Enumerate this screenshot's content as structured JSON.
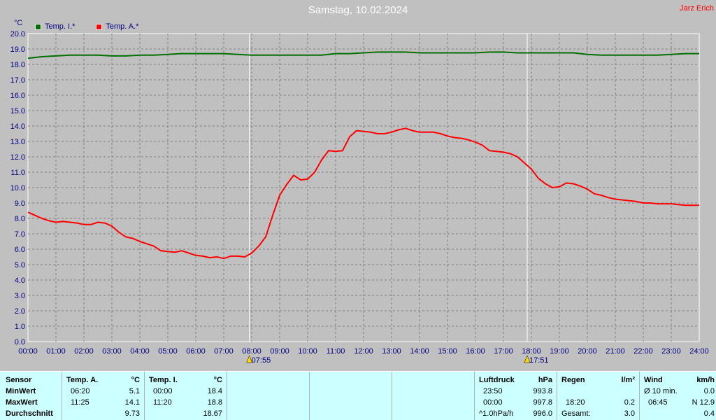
{
  "title": "Samstag, 10.02.2024",
  "author": "Jarz Erich",
  "colors": {
    "inside": "#007000",
    "outside": "#ff0000",
    "plot_bg": "#c0c0c0",
    "grid": "#808080",
    "table_bg": "#ccffff"
  },
  "chart_data": {
    "type": "line",
    "ylabel": "°C",
    "ylim": [
      0.0,
      20.0
    ],
    "y_ticks": [
      "0.0",
      "1.0",
      "2.0",
      "3.0",
      "4.0",
      "5.0",
      "6.0",
      "7.0",
      "8.0",
      "9.0",
      "10.0",
      "11.0",
      "12.0",
      "13.0",
      "14.0",
      "15.0",
      "16.0",
      "17.0",
      "18.0",
      "19.0",
      "20.0"
    ],
    "x_ticks": [
      "00:00",
      "01:00",
      "02:00",
      "03:00",
      "04:00",
      "05:00",
      "06:00",
      "07:00",
      "08:00",
      "09:00",
      "10:00",
      "11:00",
      "12:00",
      "13:00",
      "14:00",
      "15:00",
      "16:00",
      "17:00",
      "18:00",
      "19:00",
      "20:00",
      "21:00",
      "22:00",
      "23:00",
      "24:00"
    ],
    "grid": true,
    "legend": "top-left",
    "sunrise": {
      "label": "07:55",
      "hour": 7.9167
    },
    "sunset": {
      "label": "17:51",
      "hour": 17.85
    },
    "series": [
      {
        "name": "Temp. I.*",
        "color": "#007000",
        "x": [
          0,
          0.5,
          1,
          1.5,
          2,
          2.5,
          3,
          3.5,
          4,
          4.5,
          5,
          5.5,
          6,
          6.5,
          7,
          7.5,
          8,
          8.5,
          9,
          9.5,
          10,
          10.5,
          11,
          11.5,
          12,
          12.5,
          13,
          13.5,
          14,
          14.5,
          15,
          15.5,
          16,
          16.5,
          17,
          17.5,
          18,
          18.5,
          19,
          19.5,
          20,
          20.5,
          21,
          21.5,
          22,
          22.5,
          23,
          23.5,
          24
        ],
        "values": [
          18.4,
          18.5,
          18.55,
          18.6,
          18.6,
          18.6,
          18.55,
          18.55,
          18.6,
          18.6,
          18.65,
          18.7,
          18.7,
          18.7,
          18.7,
          18.65,
          18.6,
          18.6,
          18.6,
          18.6,
          18.6,
          18.6,
          18.7,
          18.7,
          18.75,
          18.8,
          18.8,
          18.8,
          18.75,
          18.75,
          18.75,
          18.75,
          18.75,
          18.8,
          18.8,
          18.75,
          18.75,
          18.75,
          18.75,
          18.75,
          18.65,
          18.6,
          18.6,
          18.6,
          18.6,
          18.6,
          18.65,
          18.7,
          18.7
        ]
      },
      {
        "name": "Temp. A.*",
        "color": "#ff0000",
        "x": [
          0,
          0.25,
          0.5,
          0.75,
          1,
          1.25,
          1.5,
          1.75,
          2,
          2.25,
          2.5,
          2.75,
          3,
          3.25,
          3.5,
          3.75,
          4,
          4.25,
          4.5,
          4.75,
          5,
          5.25,
          5.5,
          5.75,
          6,
          6.25,
          6.5,
          6.75,
          7,
          7.25,
          7.5,
          7.75,
          8,
          8.25,
          8.5,
          8.75,
          9,
          9.25,
          9.5,
          9.75,
          10,
          10.25,
          10.5,
          10.75,
          11,
          11.25,
          11.5,
          11.75,
          12,
          12.25,
          12.5,
          12.75,
          13,
          13.25,
          13.5,
          13.75,
          14,
          14.25,
          14.5,
          14.75,
          15,
          15.25,
          15.5,
          15.75,
          16,
          16.25,
          16.5,
          16.75,
          17,
          17.25,
          17.5,
          17.75,
          18,
          18.25,
          18.5,
          18.75,
          19,
          19.25,
          19.5,
          19.75,
          20,
          20.25,
          20.5,
          20.75,
          21,
          21.25,
          21.5,
          21.75,
          22,
          22.25,
          22.5,
          22.75,
          23,
          23.25,
          23.5,
          23.75,
          24
        ],
        "values": [
          8.4,
          8.2,
          8.0,
          7.85,
          7.75,
          7.8,
          7.75,
          7.7,
          7.6,
          7.6,
          7.75,
          7.7,
          7.5,
          7.1,
          6.8,
          6.7,
          6.5,
          6.35,
          6.2,
          5.9,
          5.85,
          5.8,
          5.9,
          5.75,
          5.6,
          5.55,
          5.45,
          5.5,
          5.4,
          5.55,
          5.55,
          5.5,
          5.75,
          6.2,
          6.8,
          8.2,
          9.5,
          10.2,
          10.8,
          10.5,
          10.55,
          11.0,
          11.8,
          12.4,
          12.35,
          12.4,
          13.3,
          13.7,
          13.65,
          13.6,
          13.5,
          13.5,
          13.6,
          13.75,
          13.85,
          13.7,
          13.6,
          13.6,
          13.6,
          13.5,
          13.35,
          13.25,
          13.2,
          13.1,
          12.95,
          12.75,
          12.4,
          12.35,
          12.3,
          12.2,
          12.0,
          11.6,
          11.2,
          10.6,
          10.25,
          10.0,
          10.05,
          10.3,
          10.25,
          10.1,
          9.9,
          9.6,
          9.5,
          9.35,
          9.25,
          9.2,
          9.15,
          9.1,
          9.0,
          9.0,
          8.95,
          8.95,
          8.95,
          8.9,
          8.85,
          8.85,
          8.85
        ]
      }
    ]
  },
  "table": {
    "sensor": {
      "header": "Sensor",
      "rows": [
        "MinWert",
        "MaxWert",
        "Durchschnitt"
      ]
    },
    "temp_a": {
      "header": "Temp. A.",
      "unit": "°C",
      "min_time": "06:20",
      "min_val": "5.1",
      "max_time": "11:25",
      "max_val": "14.1",
      "avg": "9.73"
    },
    "temp_i": {
      "header": "Temp. I.",
      "unit": "°C",
      "min_time": "00:00",
      "min_val": "18.4",
      "max_time": "11:20",
      "max_val": "18.8",
      "avg": "18.67"
    },
    "pressure": {
      "header": "Luftdruck",
      "unit": "hPa",
      "min_time": "23:50",
      "min_val": "993.8",
      "max_time": "00:00",
      "max_val": "997.8",
      "trend": "^1.0hPa/h",
      "avg": "996.0"
    },
    "rain": {
      "header": "Regen",
      "unit": "l/m²",
      "max_time": "18:20",
      "max_val": "0.2",
      "total_label": "Gesamt:",
      "total": "3.0"
    },
    "wind": {
      "header": "Wind",
      "unit": "km/h",
      "avg_label": "Ø 10 min.",
      "avg_val": "0.0",
      "max_time": "06:45",
      "max_val": "N 12.9",
      "avg": "0.4"
    }
  }
}
